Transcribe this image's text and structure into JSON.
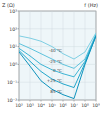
{
  "chart_data": {
    "type": "line",
    "title": "Z (Ω)",
    "x_label": "f (Hz)",
    "log": true,
    "grid": true,
    "x": [
      100,
      1000,
      10000,
      100000,
      1000000,
      10000000,
      100000000,
      1000000000
    ],
    "xlim": [
      100,
      1000000000
    ],
    "xticks": [
      {
        "value": 100,
        "label": "10²"
      },
      {
        "value": 1000,
        "label": "10³"
      },
      {
        "value": 10000,
        "label": "10⁴"
      },
      {
        "value": 100000,
        "label": "10⁵"
      },
      {
        "value": 1000000,
        "label": "10⁶"
      },
      {
        "value": 10000000,
        "label": "10⁷"
      },
      {
        "value": 100000000,
        "label": "10⁸"
      },
      {
        "value": 1000000000,
        "label": "10⁹"
      }
    ],
    "ylim": [
      0.01,
      1000
    ],
    "yticks": [
      {
        "value": 0.01,
        "label": "10⁻²"
      },
      {
        "value": 0.1,
        "label": "10⁻¹"
      },
      {
        "value": 1,
        "label": "10⁰"
      },
      {
        "value": 10,
        "label": "10¹"
      },
      {
        "value": 100,
        "label": "10²"
      },
      {
        "value": 1000,
        "label": "10³"
      }
    ],
    "series": [
      {
        "name": "-40 °C",
        "color": "#7fcfe3",
        "values": [
          40,
          30,
          20,
          10,
          4,
          2,
          5,
          60
        ]
      },
      {
        "name": "-25 °C",
        "color": "#5ec3dd",
        "values": [
          15,
          8,
          4,
          2,
          1,
          0.6,
          2,
          50
        ]
      },
      {
        "name": "0 °C",
        "color": "#3db5d5",
        "values": [
          8,
          3,
          1,
          0.5,
          0.3,
          0.2,
          1.5,
          45
        ]
      },
      {
        "name": "+25 °C",
        "color": "#22a6cb",
        "values": [
          6,
          1.5,
          0.4,
          0.15,
          0.08,
          0.05,
          1.2,
          40
        ]
      },
      {
        "name": "85 °C",
        "color": "#0e93bd",
        "values": [
          5,
          0.8,
          0.12,
          0.04,
          0.02,
          0.012,
          1,
          40
        ]
      }
    ]
  }
}
